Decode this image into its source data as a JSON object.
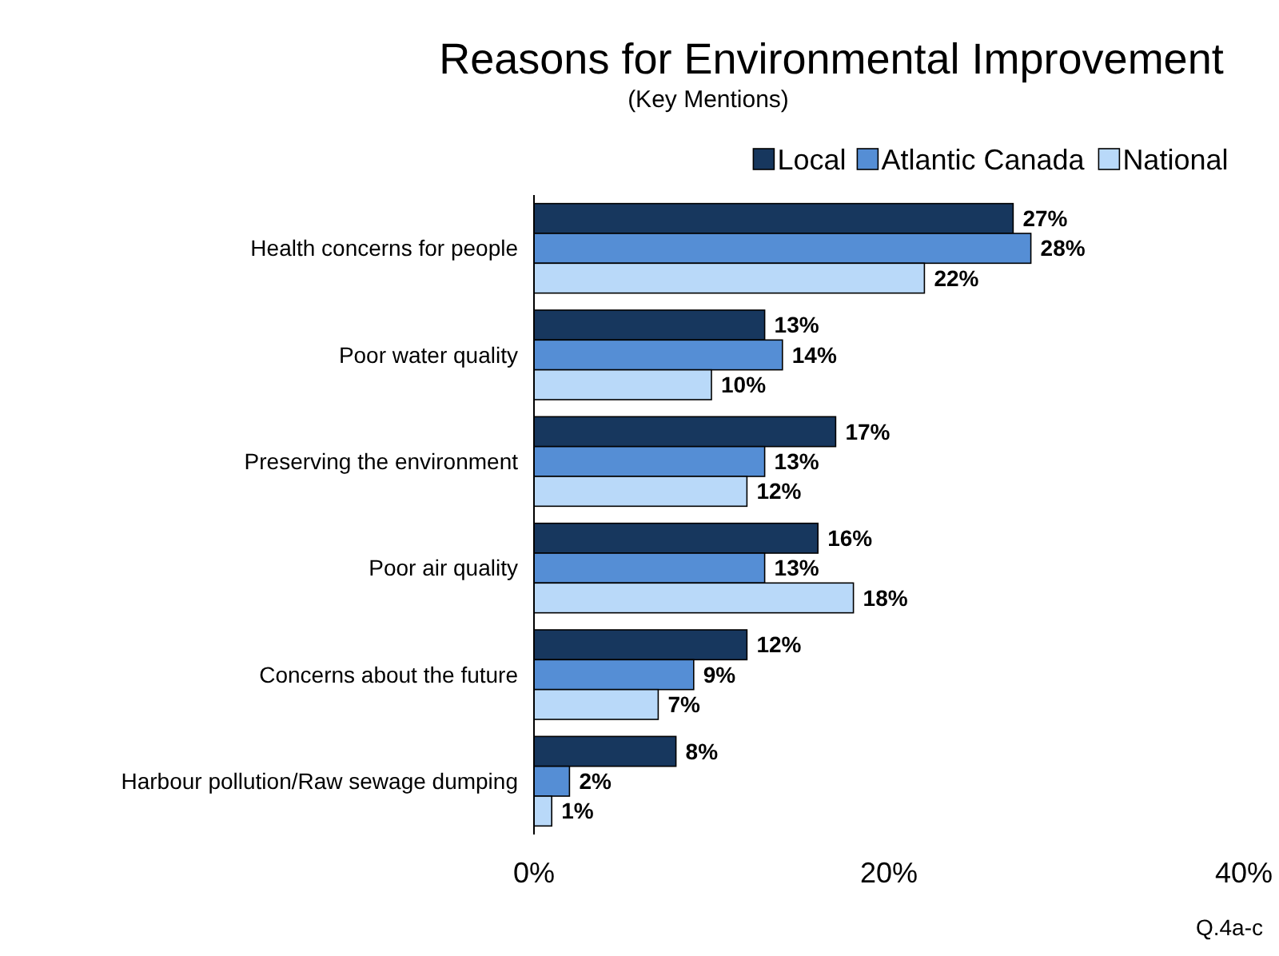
{
  "chart_data": {
    "type": "bar",
    "orientation": "horizontal",
    "title": "Reasons for Environmental Improvement",
    "subtitle": "(Key Mentions)",
    "categories": [
      "Health concerns for people",
      "Poor water quality",
      "Preserving the environment",
      "Poor air quality",
      "Concerns about the future",
      "Harbour pollution/Raw sewage dumping"
    ],
    "series": [
      {
        "name": "Local",
        "color": "#17375e",
        "values": [
          27,
          13,
          17,
          16,
          12,
          8
        ],
        "value_labels": [
          "27%",
          "13%",
          "17%",
          "16%",
          "12%",
          "8%"
        ]
      },
      {
        "name": "Atlantic Canada",
        "color": "#558ed5",
        "values": [
          28,
          14,
          13,
          13,
          9,
          2
        ],
        "value_labels": [
          "28%",
          "14%",
          "13%",
          "13%",
          "9%",
          "2%"
        ]
      },
      {
        "name": "National",
        "color": "#b9d9f9",
        "values": [
          22,
          10,
          12,
          18,
          7,
          1
        ],
        "value_labels": [
          "22%",
          "10%",
          "12%",
          "18%",
          "7%",
          "1%"
        ]
      }
    ],
    "xlim": [
      0,
      40
    ],
    "xticks": [
      {
        "value": 0,
        "label": "0%"
      },
      {
        "value": 20,
        "label": "20%"
      },
      {
        "value": 40,
        "label": "40%"
      }
    ],
    "legend": "top right",
    "annotations": [
      "Q.4a-c"
    ]
  }
}
